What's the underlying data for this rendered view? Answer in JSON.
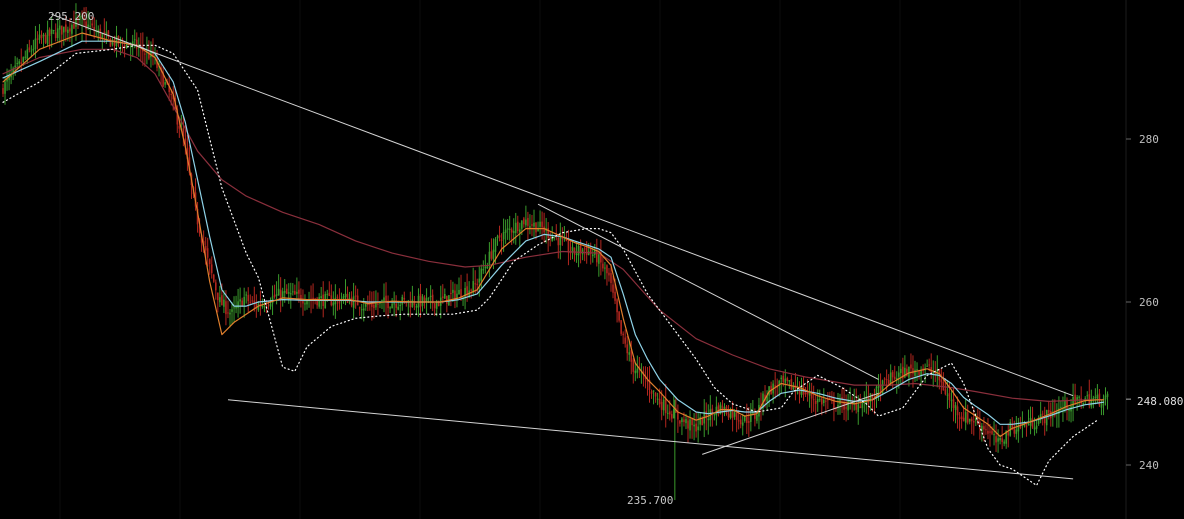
{
  "chart_data": {
    "type": "candlestick",
    "y_axis": {
      "ticks": [
        240,
        260,
        280
      ],
      "position": "right"
    },
    "ylim": [
      235,
      299
    ],
    "annotations": {
      "high_label": "295.200",
      "low_label": "235.700",
      "last_price_label": "248.080"
    },
    "colors": {
      "background": "#000000",
      "up_candle": "#3a9a2c",
      "down_candle": "#b3271f",
      "ma_fast": "#e07f2d",
      "ma_medium": "#8fd3e8",
      "ma_slow": "#8a2f3c",
      "trendline": "#d4d4d4",
      "dotted_channel": "#ffffff",
      "axis_text": "#bfbfbf"
    },
    "price_path": [
      [
        0,
        286
      ],
      [
        6,
        292
      ],
      [
        13,
        294.5
      ],
      [
        18,
        292
      ],
      [
        22,
        291.5
      ],
      [
        25,
        290
      ],
      [
        28,
        285
      ],
      [
        30,
        280
      ],
      [
        32,
        271
      ],
      [
        34,
        265
      ],
      [
        36,
        260
      ],
      [
        38,
        258.5
      ],
      [
        40,
        260.5
      ],
      [
        42,
        259.5
      ],
      [
        46,
        261
      ],
      [
        50,
        260.5
      ],
      [
        54,
        260.2
      ],
      [
        57,
        260.5
      ],
      [
        60,
        259.5
      ],
      [
        64,
        260
      ],
      [
        68,
        260
      ],
      [
        72,
        260
      ],
      [
        75,
        261
      ],
      [
        78,
        262
      ],
      [
        82,
        268
      ],
      [
        86,
        270
      ],
      [
        89,
        269
      ],
      [
        92,
        267.5
      ],
      [
        94,
        266
      ],
      [
        96,
        266.5
      ],
      [
        98,
        265.5
      ],
      [
        100,
        263
      ],
      [
        102,
        256
      ],
      [
        104,
        252
      ],
      [
        106,
        250.5
      ],
      [
        108,
        248
      ],
      [
        111,
        246
      ],
      [
        114,
        244.5
      ],
      [
        116,
        246
      ],
      [
        118,
        247
      ],
      [
        120,
        246.5
      ],
      [
        122,
        245.5
      ],
      [
        124,
        246
      ],
      [
        126,
        249
      ],
      [
        128,
        250
      ],
      [
        131,
        249.5
      ],
      [
        134,
        248
      ],
      [
        137,
        247.5
      ],
      [
        140,
        247.3
      ],
      [
        143,
        248
      ],
      [
        146,
        250.5
      ],
      [
        149,
        251.5
      ],
      [
        152,
        252
      ],
      [
        154,
        251
      ],
      [
        156,
        248
      ],
      [
        158,
        246
      ],
      [
        160,
        245.5
      ],
      [
        162,
        244.5
      ],
      [
        164,
        242.5
      ],
      [
        166,
        244.5
      ],
      [
        169,
        245
      ],
      [
        172,
        246
      ],
      [
        175,
        247.2
      ],
      [
        178,
        248.1
      ],
      [
        180,
        248.0
      ],
      [
        181,
        248.08
      ]
    ],
    "ma_fast_path": [
      [
        0,
        287
      ],
      [
        6,
        291
      ],
      [
        13,
        293
      ],
      [
        18,
        292
      ],
      [
        22,
        291.5
      ],
      [
        25,
        290
      ],
      [
        28,
        285.5
      ],
      [
        30,
        279
      ],
      [
        32,
        271
      ],
      [
        34,
        262.5
      ],
      [
        36,
        256
      ],
      [
        38,
        257.5
      ],
      [
        40,
        258.5
      ],
      [
        42,
        259.5
      ],
      [
        46,
        260.5
      ],
      [
        50,
        260.3
      ],
      [
        54,
        260.3
      ],
      [
        57,
        260.3
      ],
      [
        60,
        259.8
      ],
      [
        64,
        260.1
      ],
      [
        68,
        260
      ],
      [
        72,
        260
      ],
      [
        75,
        260.5
      ],
      [
        78,
        261.5
      ],
      [
        82,
        266.5
      ],
      [
        86,
        269
      ],
      [
        89,
        269
      ],
      [
        92,
        268
      ],
      [
        94,
        267.3
      ],
      [
        96,
        266.8
      ],
      [
        98,
        266.2
      ],
      [
        100,
        264.5
      ],
      [
        102,
        258
      ],
      [
        104,
        252.5
      ],
      [
        106,
        250.5
      ],
      [
        108,
        249
      ],
      [
        111,
        246.5
      ],
      [
        114,
        245.5
      ],
      [
        116,
        246
      ],
      [
        118,
        246.8
      ],
      [
        120,
        246.8
      ],
      [
        122,
        246
      ],
      [
        124,
        246.3
      ],
      [
        126,
        249
      ],
      [
        128,
        250
      ],
      [
        131,
        249.5
      ],
      [
        134,
        248.5
      ],
      [
        137,
        247.8
      ],
      [
        140,
        247.5
      ],
      [
        143,
        248
      ],
      [
        146,
        250
      ],
      [
        149,
        251.3
      ],
      [
        152,
        251.8
      ],
      [
        154,
        251.2
      ],
      [
        156,
        249.2
      ],
      [
        158,
        247
      ],
      [
        160,
        246
      ],
      [
        162,
        245
      ],
      [
        164,
        243.5
      ],
      [
        166,
        244.5
      ],
      [
        169,
        245.3
      ],
      [
        172,
        246.2
      ],
      [
        175,
        247.2
      ],
      [
        178,
        247.9
      ],
      [
        180,
        248
      ],
      [
        181,
        248
      ]
    ],
    "ma_medium_path": [
      [
        0,
        287.5
      ],
      [
        6,
        289.5
      ],
      [
        13,
        292
      ],
      [
        18,
        292
      ],
      [
        22,
        291.5
      ],
      [
        25,
        290.5
      ],
      [
        28,
        287
      ],
      [
        30,
        282
      ],
      [
        32,
        275
      ],
      [
        34,
        268
      ],
      [
        36,
        261.5
      ],
      [
        38,
        259.5
      ],
      [
        40,
        259.5
      ],
      [
        42,
        260
      ],
      [
        46,
        260.3
      ],
      [
        50,
        260.2
      ],
      [
        54,
        260.2
      ],
      [
        57,
        260.2
      ],
      [
        60,
        260
      ],
      [
        64,
        260
      ],
      [
        68,
        260
      ],
      [
        72,
        260
      ],
      [
        75,
        260.3
      ],
      [
        78,
        261
      ],
      [
        82,
        264.5
      ],
      [
        86,
        267.5
      ],
      [
        89,
        268.3
      ],
      [
        92,
        268
      ],
      [
        94,
        267.5
      ],
      [
        96,
        267
      ],
      [
        98,
        266.5
      ],
      [
        100,
        265.5
      ],
      [
        102,
        261
      ],
      [
        104,
        256
      ],
      [
        106,
        253
      ],
      [
        108,
        250.5
      ],
      [
        111,
        248
      ],
      [
        114,
        246.5
      ],
      [
        116,
        246.3
      ],
      [
        118,
        246.5
      ],
      [
        120,
        246.7
      ],
      [
        122,
        246.5
      ],
      [
        124,
        246.5
      ],
      [
        126,
        247.8
      ],
      [
        128,
        248.8
      ],
      [
        131,
        249.2
      ],
      [
        134,
        248.8
      ],
      [
        137,
        248.2
      ],
      [
        140,
        247.8
      ],
      [
        143,
        248
      ],
      [
        146,
        249.2
      ],
      [
        149,
        250.5
      ],
      [
        152,
        251.2
      ],
      [
        154,
        251
      ],
      [
        156,
        250
      ],
      [
        158,
        248.3
      ],
      [
        160,
        247.2
      ],
      [
        162,
        246.2
      ],
      [
        164,
        245
      ],
      [
        166,
        245
      ],
      [
        169,
        245.3
      ],
      [
        172,
        246
      ],
      [
        175,
        246.8
      ],
      [
        178,
        247.4
      ],
      [
        180,
        247.6
      ],
      [
        181,
        247.7
      ]
    ],
    "ma_slow_path": [
      [
        0,
        288
      ],
      [
        6,
        290
      ],
      [
        13,
        291
      ],
      [
        18,
        291
      ],
      [
        22,
        290
      ],
      [
        25,
        288
      ],
      [
        28,
        284
      ],
      [
        32,
        278.5
      ],
      [
        36,
        275
      ],
      [
        40,
        273
      ],
      [
        46,
        271
      ],
      [
        52,
        269.5
      ],
      [
        58,
        267.5
      ],
      [
        64,
        266
      ],
      [
        70,
        265
      ],
      [
        76,
        264.3
      ],
      [
        80,
        264.5
      ],
      [
        86,
        265.5
      ],
      [
        92,
        266.2
      ],
      [
        98,
        266
      ],
      [
        102,
        264
      ],
      [
        108,
        259
      ],
      [
        114,
        255.5
      ],
      [
        120,
        253.5
      ],
      [
        126,
        251.8
      ],
      [
        132,
        250.8
      ],
      [
        140,
        249.8
      ],
      [
        146,
        249.8
      ],
      [
        150,
        250
      ],
      [
        156,
        249.5
      ],
      [
        160,
        249
      ],
      [
        166,
        248.2
      ],
      [
        172,
        247.8
      ],
      [
        178,
        248
      ],
      [
        181,
        248
      ]
    ],
    "dotted_channel_path": [
      [
        0,
        284.5
      ],
      [
        6,
        287
      ],
      [
        12,
        290.5
      ],
      [
        18,
        291
      ],
      [
        22,
        291.5
      ],
      [
        25,
        291.5
      ],
      [
        28,
        290.5
      ],
      [
        32,
        286
      ],
      [
        36,
        274
      ],
      [
        40,
        266
      ],
      [
        42,
        263
      ],
      [
        46,
        252
      ],
      [
        48,
        251.5
      ],
      [
        50,
        254.5
      ],
      [
        54,
        257
      ],
      [
        58,
        258
      ],
      [
        62,
        258.3
      ],
      [
        66,
        258.5
      ],
      [
        70,
        258.5
      ],
      [
        74,
        258.5
      ],
      [
        78,
        259
      ],
      [
        80,
        260.5
      ],
      [
        84,
        265
      ],
      [
        88,
        267
      ],
      [
        92,
        268.5
      ],
      [
        96,
        269
      ],
      [
        98,
        269
      ],
      [
        100,
        268.5
      ],
      [
        102,
        266.5
      ],
      [
        106,
        261
      ],
      [
        110,
        257
      ],
      [
        114,
        253
      ],
      [
        117,
        249.5
      ],
      [
        120,
        247.5
      ],
      [
        124,
        246.5
      ],
      [
        128,
        247
      ],
      [
        130,
        249
      ],
      [
        134,
        251
      ],
      [
        138,
        249.5
      ],
      [
        142,
        247.5
      ],
      [
        144,
        246
      ],
      [
        148,
        247
      ],
      [
        152,
        251
      ],
      [
        156,
        252.5
      ],
      [
        158,
        250
      ],
      [
        160,
        246
      ],
      [
        162,
        242
      ],
      [
        164,
        240
      ],
      [
        166,
        239.5
      ],
      [
        168,
        238.5
      ],
      [
        170,
        237.5
      ],
      [
        172,
        240.5
      ],
      [
        176,
        243.5
      ],
      [
        180,
        245.5
      ]
    ],
    "trendlines": [
      {
        "from": [
          8,
          295.3
        ],
        "to": [
          176,
          248.5
        ]
      },
      {
        "from": [
          37,
          248.0
        ],
        "to": [
          176,
          238.3
        ]
      },
      {
        "from": [
          88,
          272.0
        ],
        "to": [
          144,
          250.5
        ]
      },
      {
        "from": [
          115,
          241.3
        ],
        "to": [
          144,
          248.8
        ]
      }
    ],
    "x_range": [
      0,
      183
    ]
  }
}
